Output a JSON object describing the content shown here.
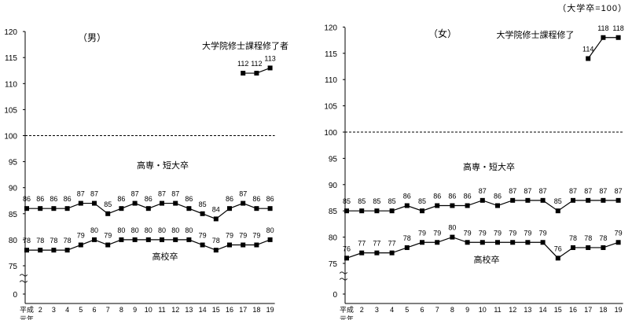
{
  "note": "（大学卒=100）",
  "x_tick_labels": [
    "平成\n元年",
    "2",
    "3",
    "4",
    "5",
    "6",
    "7",
    "8",
    "9",
    "10",
    "11",
    "12",
    "13",
    "14",
    "15",
    "16",
    "17",
    "18",
    "19"
  ],
  "y_tick_labels": [
    "0",
    "75",
    "80",
    "85",
    "90",
    "95",
    "100",
    "105",
    "110",
    "115",
    "120"
  ],
  "break_mark": "〜\n〜",
  "chart_data": [
    {
      "type": "line",
      "title": "（男）",
      "xlabel": "",
      "ylabel": "",
      "ylim": [
        75,
        120
      ],
      "reference_line": 100,
      "grid": false,
      "series": [
        {
          "name": "大学院修士課程修了者",
          "start_index": 16,
          "values": [
            112,
            112,
            113
          ]
        },
        {
          "name": "高専・短大卒",
          "start_index": 0,
          "values": [
            86,
            86,
            86,
            86,
            87,
            87,
            85,
            86,
            87,
            86,
            87,
            87,
            86,
            85,
            84,
            86,
            87,
            86,
            86
          ]
        },
        {
          "name": "高校卒",
          "start_index": 0,
          "values": [
            78,
            78,
            78,
            78,
            79,
            80,
            79,
            80,
            80,
            80,
            80,
            80,
            80,
            79,
            78,
            79,
            79,
            79,
            80
          ]
        }
      ]
    },
    {
      "type": "line",
      "title": "（女）",
      "xlabel": "",
      "ylabel": "",
      "ylim": [
        75,
        120
      ],
      "reference_line": 100,
      "grid": false,
      "series": [
        {
          "name": "大学院修士課程修了",
          "start_index": 16,
          "values": [
            114,
            118,
            118
          ]
        },
        {
          "name": "高専・短大卒",
          "start_index": 0,
          "values": [
            85,
            85,
            85,
            85,
            86,
            85,
            86,
            86,
            86,
            87,
            86,
            87,
            87,
            87,
            85,
            87,
            87,
            87,
            87
          ]
        },
        {
          "name": "高校卒",
          "start_index": 0,
          "values": [
            76,
            77,
            77,
            77,
            78,
            79,
            79,
            80,
            79,
            79,
            79,
            79,
            79,
            79,
            76,
            78,
            78,
            78,
            79
          ]
        }
      ]
    }
  ]
}
